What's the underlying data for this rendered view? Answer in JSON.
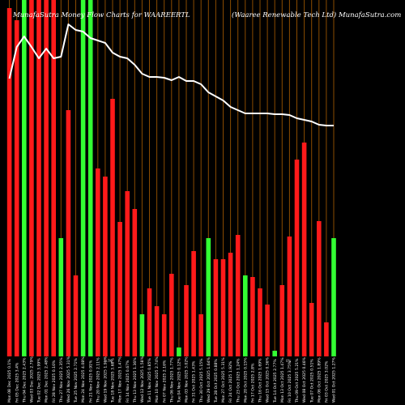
{
  "chart_data": {
    "type": "bar",
    "title_left": "MunafaSutra  Money Flow  Charts for WAAREERTL",
    "title_right": "(Waaree    Renewable    Tech Ltd) MunafaSutra.com",
    "categories": [
      "Mon 08 Dec 2025 0.1%",
      "Fri 05 Dec 2025 3.4%",
      "Thu 04 Dec 2025 2.43%",
      "Wed 03 Dec 2025 2.79%",
      "Tue 02 Dec 2025 3.99%",
      "Mon 01 Dec 2025 2.48%",
      "Fri 28 Nov 2025 0.16%",
      "Thu 27 Nov 2025 2.35%",
      "Wed 26 Nov 2025 5.31%",
      "Tue 25 Nov 2025 2.71%",
      "Mon 24 Nov 2025 4.08%",
      "Fri 21 Nov 2025 0.91%",
      "Thu 20 Nov 2025 2.11%",
      "Wed 19 Nov 2025 1.91%",
      "Tue 18 Nov 2025 3.68%",
      "Mon 17 Nov 2025 1.47%",
      "Fri 14 Nov 2025 0.67%",
      "Thu 13 Nov 2025 1.36%",
      "Wed 12 Nov 2025 1.58%",
      "Tue 11 Nov 2025 0.85%",
      "Mon 10 Nov 2025 2.74%",
      "Fri 07 Nov 2025 2.16%",
      "Thu 06 Nov 2025 1.77%",
      "Tue 04 Nov 2025 0.12%",
      "Mon 03 Nov 2025 3.02%",
      "Fri 31 Oct 2025 1.43%",
      "Thu 30 Oct 2025 5.15%",
      "Wed 29 Oct 2025 1.64%",
      "Tue 28 Oct 2025 0.88%",
      "Mon 27 Oct 2025 5.31%",
      "Fri 24 Oct 2025 1.92%",
      "Thu 23 Oct 2025 1.24%",
      "Mon 20 Oct 2025 0.15%",
      "Fri 17 Oct 2025 2.8%",
      "Thu 16 Oct 2025 1.69%",
      "Wed 15 Oct 2025 0.36%",
      "Tue 14 Oct 2025 2.77%",
      "Mon 13 Oct 2025 1.47%",
      "Fri 10 Oct 2025 3.75%",
      "Thu 09 Oct 2025 5.21%",
      "Wed 08 Oct 2025 0.46%",
      "Tue 07 Oct 2025 0.51%",
      "Mon 06 Oct 2025 1.89%",
      "Fri 03 Oct 2025 3.02%",
      "Wed 01 Oct 2025 1.27%"
    ],
    "bar_colors": [
      "red",
      "red",
      "green",
      "red",
      "red",
      "red",
      "red",
      "green",
      "red",
      "red",
      "green",
      "green",
      "red",
      "red",
      "red",
      "red",
      "red",
      "red",
      "green",
      "red",
      "red",
      "red",
      "red",
      "green",
      "red",
      "red",
      "red",
      "green",
      "red",
      "red",
      "red",
      "red",
      "green",
      "red",
      "red",
      "red",
      "green",
      "red",
      "red",
      "red",
      "red",
      "red",
      "red",
      "red",
      "green"
    ],
    "bar_values": [
      430,
      415,
      440,
      440,
      440,
      440,
      440,
      146,
      304,
      100,
      440,
      440,
      232,
      222,
      318,
      166,
      204,
      182,
      52,
      84,
      62,
      52,
      102,
      11,
      88,
      130,
      52,
      146,
      120,
      120,
      128,
      150,
      100,
      98,
      84,
      64,
      7,
      88,
      148,
      243,
      264,
      66,
      167,
      42,
      146
    ],
    "line_values": [
      343,
      382,
      395,
      382,
      368,
      380,
      368,
      370,
      410,
      403,
      401,
      393,
      390,
      387,
      375,
      370,
      368,
      360,
      349,
      345,
      345,
      344,
      341,
      345,
      340,
      340,
      336,
      326,
      321,
      316,
      308,
      304,
      300,
      300,
      300,
      300,
      299,
      299,
      298,
      294,
      292,
      290,
      286,
      285,
      285
    ],
    "scale_markers": [
      "0.7K",
      "0%"
    ],
    "ylim": [
      0,
      440
    ]
  }
}
